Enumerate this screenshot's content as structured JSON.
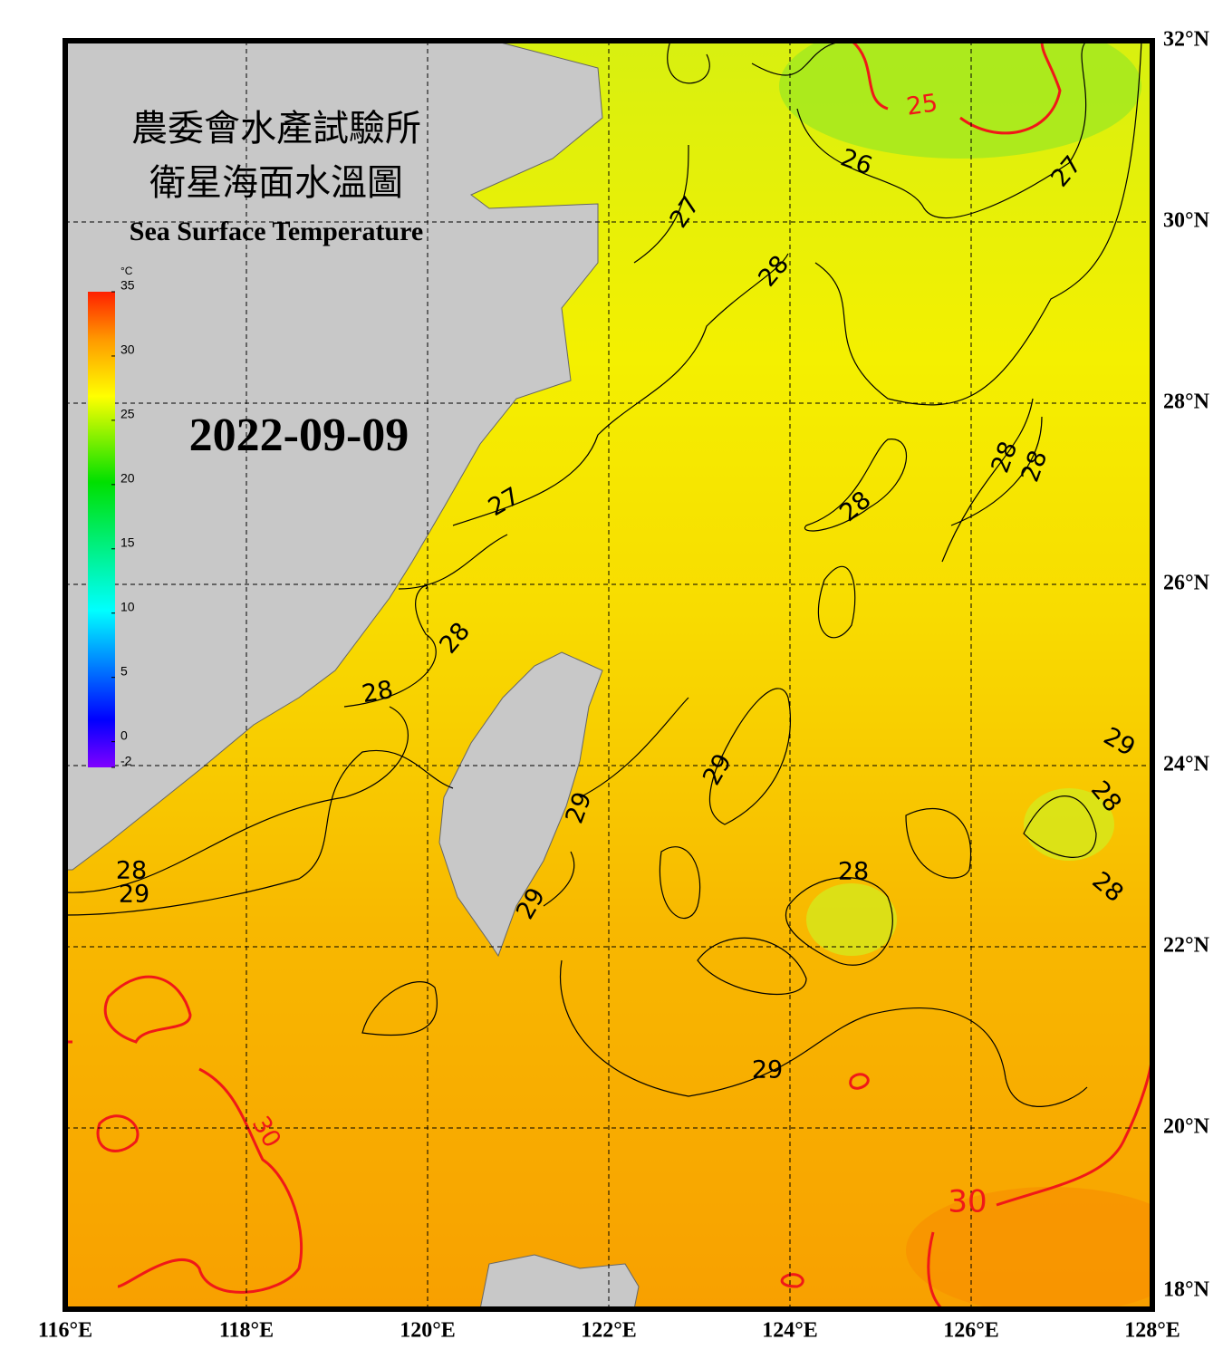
{
  "header": {
    "title_zh_1": "農委會水產試驗所",
    "title_zh_2": "衛星海面水溫圖",
    "title_en": "Sea Surface Temperature",
    "date": "2022-09-09"
  },
  "colorbar": {
    "unit": "°C",
    "lim": [
      -2,
      35
    ],
    "ticks": [
      -2,
      0,
      5,
      10,
      15,
      20,
      25,
      30,
      35
    ]
  },
  "map": {
    "xlim": [
      116,
      128
    ],
    "ylim": [
      18,
      32
    ],
    "xticks": [
      {
        "value": 116,
        "label": "116°E"
      },
      {
        "value": 118,
        "label": "118°E"
      },
      {
        "value": 120,
        "label": "120°E"
      },
      {
        "value": 122,
        "label": "122°E"
      },
      {
        "value": 124,
        "label": "124°E"
      },
      {
        "value": 126,
        "label": "126°E"
      },
      {
        "value": 128,
        "label": "128°E"
      }
    ],
    "yticks": [
      {
        "value": 18,
        "label": "18°N"
      },
      {
        "value": 20,
        "label": "20°N"
      },
      {
        "value": 22,
        "label": "22°N"
      },
      {
        "value": 24,
        "label": "24°N"
      },
      {
        "value": 26,
        "label": "26°N"
      },
      {
        "value": 28,
        "label": "28°N"
      },
      {
        "value": 30,
        "label": "30°N"
      },
      {
        "value": 32,
        "label": "32°N"
      }
    ],
    "contour_labels": [
      25,
      26,
      27,
      27,
      28,
      28,
      28,
      28,
      27,
      28,
      28,
      29,
      29,
      28,
      29,
      28,
      29,
      28,
      28,
      29,
      29,
      30,
      30
    ]
  }
}
